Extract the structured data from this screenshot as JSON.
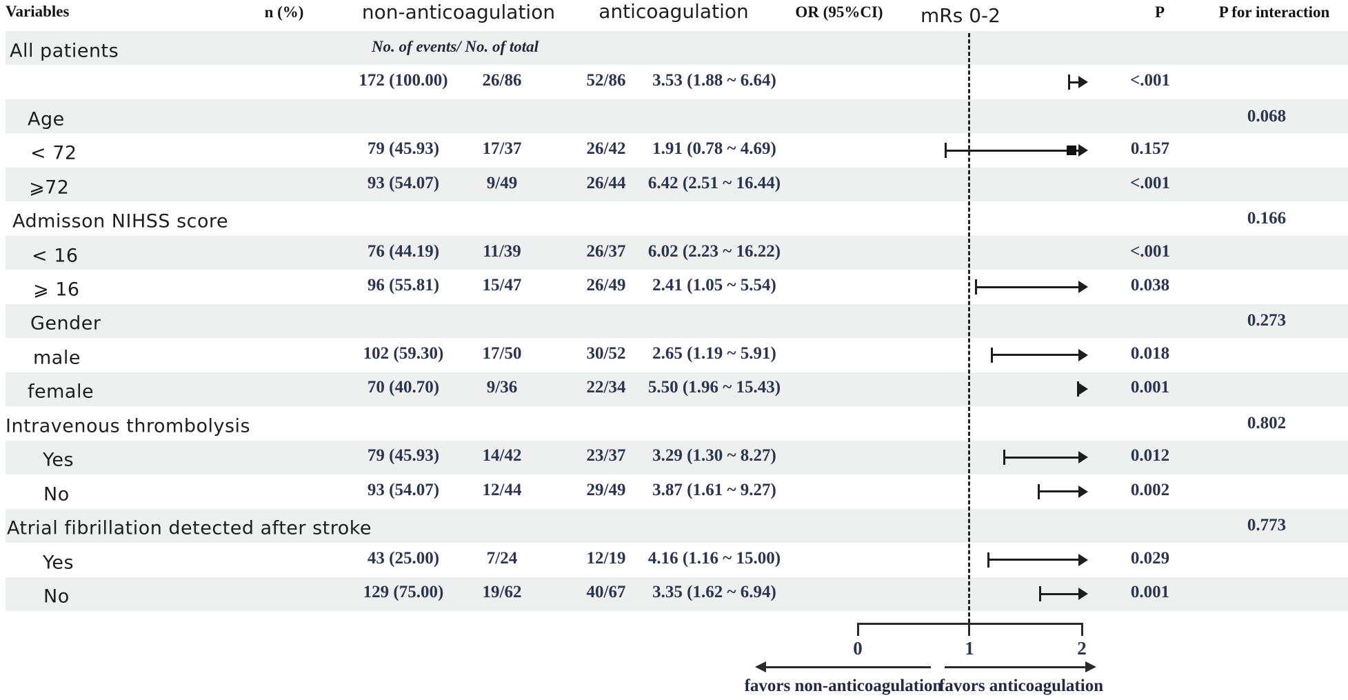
{
  "header": {
    "variables": "Variables",
    "n_pct": "n (%)",
    "non_anticoagulation": "non-anticoagulation",
    "anticoagulation": "anticoagulation",
    "or_ci": "OR (95%CI)",
    "effect": "mRs 0-2",
    "p": "P",
    "p_interaction": "P for interaction"
  },
  "subtitle": "No. of events/ No. of total",
  "colors": {
    "band": "#edf0ee",
    "ink": "#1d1d1d",
    "numeric": "#2b3550"
  },
  "chart_data": {
    "type": "forest",
    "effect_label": "mRs 0-2",
    "or_axis": {
      "min": 0,
      "max": 2,
      "reference": 1,
      "ticks": [
        "0",
        "1",
        "2"
      ]
    },
    "footer": {
      "left_arrow_label": "favors non-anticoagulation",
      "right_arrow_label": "favors anticoagulation"
    },
    "rows": [
      {
        "kind": "group",
        "label": "All patients",
        "indent": 14,
        "show_subtitle": true
      },
      {
        "kind": "data",
        "label": "",
        "indent": 0,
        "n_pct": "172 (100.00)",
        "non_anticoag_events": "26/86",
        "anticoag_events": "52/86",
        "or_ci_text": "3.53 (1.88 ~ 6.64)",
        "or": 3.53,
        "ci_low": 1.88,
        "ci_high": 6.64,
        "p": "<.001"
      },
      {
        "kind": "group",
        "label": "Age",
        "indent": 40,
        "p_interaction": "0.068"
      },
      {
        "kind": "data",
        "label": "< 72",
        "indent": 44,
        "n_pct": "79 (45.93)",
        "non_anticoag_events": "17/37",
        "anticoag_events": "26/42",
        "or_ci_text": "1.91 (0.78 ~ 4.69)",
        "or": 1.91,
        "ci_low": 0.78,
        "ci_high": 4.69,
        "p": "0.157"
      },
      {
        "kind": "data",
        "label": "⩾72",
        "indent": 42,
        "n_pct": "93 (54.07)",
        "non_anticoag_events": "9/49",
        "anticoag_events": "26/44",
        "or_ci_text": "6.42 (2.51 ~ 16.44)",
        "or": 6.42,
        "ci_low": 2.51,
        "ci_high": 16.44,
        "p": "<.001"
      },
      {
        "kind": "group",
        "label": "Admisson NIHSS score",
        "indent": 18,
        "p_interaction": "0.166"
      },
      {
        "kind": "data",
        "label": "< 16",
        "indent": 46,
        "n_pct": "76 (44.19)",
        "non_anticoag_events": "11/39",
        "anticoag_events": "26/37",
        "or_ci_text": "6.02 (2.23 ~ 16.22)",
        "or": 6.02,
        "ci_low": 2.23,
        "ci_high": 16.22,
        "p": "<.001"
      },
      {
        "kind": "data",
        "label": "⩾ 16",
        "indent": 48,
        "n_pct": "96 (55.81)",
        "non_anticoag_events": "15/47",
        "anticoag_events": "26/49",
        "or_ci_text": "2.41 (1.05 ~ 5.54)",
        "or": 2.41,
        "ci_low": 1.05,
        "ci_high": 5.54,
        "p": "0.038"
      },
      {
        "kind": "group",
        "label": "Gender",
        "indent": 44,
        "p_interaction": "0.273"
      },
      {
        "kind": "data",
        "label": "male",
        "indent": 48,
        "n_pct": "102 (59.30)",
        "non_anticoag_events": "17/50",
        "anticoag_events": "30/52",
        "or_ci_text": "2.65 (1.19 ~ 5.91)",
        "or": 2.65,
        "ci_low": 1.19,
        "ci_high": 5.91,
        "p": "0.018"
      },
      {
        "kind": "data",
        "label": "female",
        "indent": 40,
        "n_pct": "70 (40.70)",
        "non_anticoag_events": "9/36",
        "anticoag_events": "22/34",
        "or_ci_text": "5.50 (1.96 ~ 15.43)",
        "or": 5.5,
        "ci_low": 1.96,
        "ci_high": 15.43,
        "p": "0.001"
      },
      {
        "kind": "group",
        "label": "Intravenous thrombolysis",
        "indent": 8,
        "p_interaction": "0.802"
      },
      {
        "kind": "data",
        "label": "Yes",
        "indent": 62,
        "n_pct": "79 (45.93)",
        "non_anticoag_events": "14/42",
        "anticoag_events": "23/37",
        "or_ci_text": "3.29 (1.30 ~ 8.27)",
        "or": 3.29,
        "ci_low": 1.3,
        "ci_high": 8.27,
        "p": "0.012"
      },
      {
        "kind": "data",
        "label": "No",
        "indent": 63,
        "n_pct": "93 (54.07)",
        "non_anticoag_events": "12/44",
        "anticoag_events": "29/49",
        "or_ci_text": "3.87 (1.61 ~ 9.27)",
        "or": 3.87,
        "ci_low": 1.61,
        "ci_high": 9.27,
        "p": "0.002"
      },
      {
        "kind": "group",
        "label": "Atrial fibrillation detected after stroke",
        "indent": 10,
        "p_interaction": "0.773"
      },
      {
        "kind": "data",
        "label": "Yes",
        "indent": 62,
        "n_pct": "43 (25.00)",
        "non_anticoag_events": "7/24",
        "anticoag_events": "12/19",
        "or_ci_text": "4.16 (1.16 ~ 15.00)",
        "or": 4.16,
        "ci_low": 1.16,
        "ci_high": 15.0,
        "p": "0.029"
      },
      {
        "kind": "data",
        "label": "No",
        "indent": 63,
        "n_pct": "129 (75.00)",
        "non_anticoag_events": "19/62",
        "anticoag_events": "40/67",
        "or_ci_text": "3.35 (1.62 ~ 6.94)",
        "or": 3.35,
        "ci_low": 1.62,
        "ci_high": 6.94,
        "p": "0.001"
      }
    ]
  }
}
